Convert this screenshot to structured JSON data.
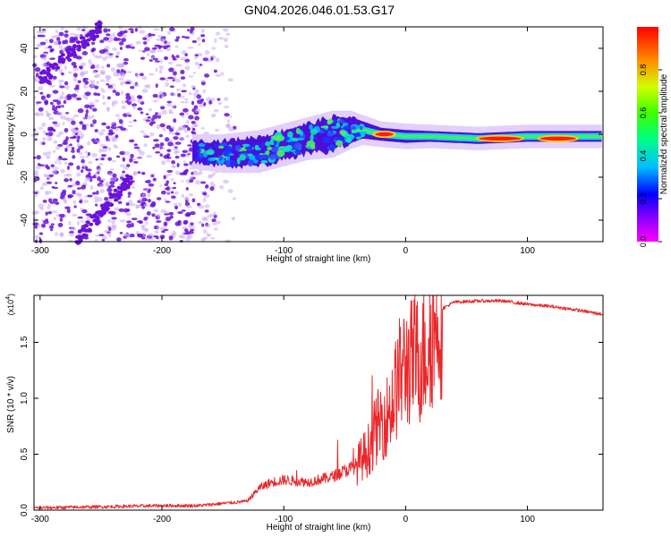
{
  "title": "GN04.2026.046.01.53.G17",
  "colors": {
    "trace": "#e8282b",
    "axis": "#000000",
    "cloud": "#6a12d6",
    "cloud_light": "#c8a8f4"
  },
  "colorbar": {
    "label": "Normalized spectral amplitude",
    "ticks": [
      "0.0",
      "0.2",
      "0.4",
      "0.6",
      "0.8"
    ],
    "range": [
      0,
      1
    ],
    "colormap": "rainbow (magenta to red)"
  },
  "chart_data": [
    {
      "type": "heatmap",
      "name": "spectrogram",
      "xlabel": "Height of straight line (km)",
      "ylabel": "Frequency (Hz)",
      "xlim": [
        -305,
        162
      ],
      "ylim": [
        -50,
        50
      ],
      "xticks": [
        -300,
        -200,
        -100,
        0,
        100
      ],
      "xtick_labels": [
        "-300",
        "-200",
        "-100",
        "0",
        "100"
      ],
      "yticks": [
        -40,
        -20,
        0,
        20,
        40
      ],
      "ytick_labels": [
        "-40",
        "-20",
        "0",
        "20",
        "40"
      ],
      "centerline": {
        "x": [
          -175,
          -150,
          -120,
          -100,
          -80,
          -60,
          -45,
          -35,
          -20,
          0,
          20,
          60,
          100,
          162
        ],
        "y": [
          -8,
          -9,
          -8,
          -5,
          -2,
          0,
          2,
          2,
          0,
          -1,
          -1,
          -2,
          -1,
          -1
        ],
        "halfwidth": [
          5,
          6,
          7,
          7,
          7,
          8,
          6,
          4,
          3,
          3,
          2.5,
          2.5,
          2.5,
          2.5
        ]
      },
      "peak_regions": [
        {
          "x": [
            -25,
            -10
          ],
          "y": 0,
          "amplitude": 1.0
        },
        {
          "x": [
            60,
            95
          ],
          "y": -2,
          "amplitude": 1.0
        },
        {
          "x": [
            110,
            140
          ],
          "y": -2,
          "amplitude": 0.9
        }
      ],
      "noise_region_x": [
        -305,
        -150
      ]
    },
    {
      "type": "line",
      "name": "snr",
      "xlabel": "Height of straight line (km)",
      "ylabel": "SNR (10 * v/v)",
      "scale_label": "(x10",
      "scale_exponent": "4",
      "xlim": [
        -305,
        162
      ],
      "ylim": [
        0,
        1.92
      ],
      "xticks": [
        -300,
        -200,
        -100,
        0,
        100
      ],
      "xtick_labels": [
        "-300",
        "-200",
        "-100",
        "0",
        "100"
      ],
      "yticks": [
        0,
        0.5,
        1,
        1.5
      ],
      "ytick_labels": [
        "0.0",
        "0.5",
        "1.0",
        "1.5"
      ],
      "series": [
        {
          "name": "SNR",
          "x": [
            -305,
            -250,
            -200,
            -170,
            -150,
            -130,
            -120,
            -110,
            -100,
            -80,
            -60,
            -50,
            -40,
            -30,
            -25,
            -20,
            -15,
            -10,
            -5,
            0,
            5,
            10,
            15,
            20,
            25,
            30,
            40,
            60,
            80,
            100,
            120,
            140,
            162
          ],
          "y": [
            0.02,
            0.03,
            0.04,
            0.04,
            0.06,
            0.08,
            0.2,
            0.25,
            0.27,
            0.25,
            0.3,
            0.35,
            0.4,
            0.55,
            0.7,
            0.8,
            0.85,
            1.0,
            1.2,
            1.3,
            1.32,
            1.35,
            1.4,
            1.55,
            1.7,
            1.8,
            1.86,
            1.87,
            1.87,
            1.84,
            1.82,
            1.79,
            1.75
          ]
        }
      ]
    }
  ]
}
